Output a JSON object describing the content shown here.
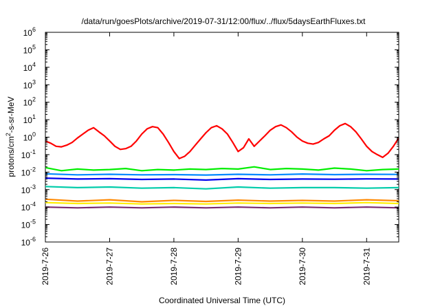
{
  "chart_data": {
    "type": "line",
    "title": "/data/run/goesPlots/archive/2019-07-31/12:00/flux/../flux/5daysEarthFluxes.txt",
    "xlabel": "Coordinated Universal Time (UTC)",
    "ylabel": {
      "base": "protons/cm",
      "exp": "2",
      "rest": "-s-sr-MeV"
    },
    "y_scale": "log",
    "ylim": [
      1e-06,
      1000000.0
    ],
    "y_ticks": [
      {
        "base": "10",
        "exp": "-6",
        "value": 1e-06
      },
      {
        "base": "10",
        "exp": "-5",
        "value": 1e-05
      },
      {
        "base": "10",
        "exp": "-4",
        "value": 0.0001
      },
      {
        "base": "10",
        "exp": "-3",
        "value": 0.001
      },
      {
        "base": "10",
        "exp": "-2",
        "value": 0.01
      },
      {
        "base": "10",
        "exp": "-1",
        "value": 0.1
      },
      {
        "base": "10",
        "exp": "0",
        "value": 1
      },
      {
        "base": "10",
        "exp": "1",
        "value": 10
      },
      {
        "base": "10",
        "exp": "2",
        "value": 100
      },
      {
        "base": "10",
        "exp": "3",
        "value": 1000
      },
      {
        "base": "10",
        "exp": "4",
        "value": 10000
      },
      {
        "base": "10",
        "exp": "5",
        "value": 100000
      },
      {
        "base": "10",
        "exp": "6",
        "value": 1000000
      }
    ],
    "xlim": [
      "2019-07-26 00:00",
      "2019-07-31 12:00"
    ],
    "x_ticks": [
      "2019-7-26",
      "2019-7-27",
      "2019-7-28",
      "2019-7-29",
      "2019-7-30",
      "2019-7-31"
    ],
    "grid": false,
    "series": [
      {
        "color": "#ff0000",
        "x": [
          "2019-07-26 00:00",
          "2019-07-26 02:00",
          "2019-07-26 04:00",
          "2019-07-26 06:00",
          "2019-07-26 08:00",
          "2019-07-26 10:00",
          "2019-07-26 12:00",
          "2019-07-26 14:00",
          "2019-07-26 16:00",
          "2019-07-26 18:00",
          "2019-07-26 20:00",
          "2019-07-26 22:00",
          "2019-07-27 00:00",
          "2019-07-27 02:00",
          "2019-07-27 04:00",
          "2019-07-27 06:00",
          "2019-07-27 08:00",
          "2019-07-27 10:00",
          "2019-07-27 12:00",
          "2019-07-27 14:00",
          "2019-07-27 16:00",
          "2019-07-27 18:00",
          "2019-07-27 20:00",
          "2019-07-27 22:00",
          "2019-07-28 00:00",
          "2019-07-28 02:00",
          "2019-07-28 04:00",
          "2019-07-28 06:00",
          "2019-07-28 08:00",
          "2019-07-28 10:00",
          "2019-07-28 12:00",
          "2019-07-28 14:00",
          "2019-07-28 16:00",
          "2019-07-28 18:00",
          "2019-07-28 20:00",
          "2019-07-28 22:00",
          "2019-07-29 00:00",
          "2019-07-29 02:00",
          "2019-07-29 04:00",
          "2019-07-29 06:00",
          "2019-07-29 08:00",
          "2019-07-29 10:00",
          "2019-07-29 12:00",
          "2019-07-29 14:00",
          "2019-07-29 16:00",
          "2019-07-29 18:00",
          "2019-07-29 20:00",
          "2019-07-29 22:00",
          "2019-07-30 00:00",
          "2019-07-30 02:00",
          "2019-07-30 04:00",
          "2019-07-30 06:00",
          "2019-07-30 08:00",
          "2019-07-30 10:00",
          "2019-07-30 12:00",
          "2019-07-30 14:00",
          "2019-07-30 16:00",
          "2019-07-30 18:00",
          "2019-07-30 20:00",
          "2019-07-30 22:00",
          "2019-07-31 00:00",
          "2019-07-31 02:00",
          "2019-07-31 04:00",
          "2019-07-31 06:00",
          "2019-07-31 08:00",
          "2019-07-31 10:00",
          "2019-07-31 12:00"
        ],
        "values": [
          0.6,
          0.45,
          0.3,
          0.28,
          0.35,
          0.5,
          0.9,
          1.5,
          2.5,
          3.5,
          2.0,
          1.2,
          0.6,
          0.3,
          0.2,
          0.22,
          0.3,
          0.6,
          1.5,
          3.0,
          4.0,
          3.5,
          1.5,
          0.5,
          0.15,
          0.06,
          0.08,
          0.15,
          0.35,
          0.8,
          1.8,
          3.5,
          4.5,
          3.0,
          1.5,
          0.5,
          0.15,
          0.25,
          0.8,
          0.3,
          0.6,
          1.2,
          2.5,
          4.0,
          5.0,
          3.5,
          2.0,
          1.0,
          0.6,
          0.45,
          0.4,
          0.5,
          0.8,
          1.2,
          2.5,
          4.5,
          6.0,
          4.0,
          2.0,
          0.8,
          0.3,
          0.15,
          0.1,
          0.07,
          0.12,
          0.3,
          0.9
        ]
      },
      {
        "color": "#00ee00",
        "x": [
          "2019-07-26 00:00",
          "2019-07-26 06:00",
          "2019-07-26 12:00",
          "2019-07-26 18:00",
          "2019-07-27 00:00",
          "2019-07-27 06:00",
          "2019-07-27 12:00",
          "2019-07-27 18:00",
          "2019-07-28 00:00",
          "2019-07-28 06:00",
          "2019-07-28 12:00",
          "2019-07-28 18:00",
          "2019-07-29 00:00",
          "2019-07-29 06:00",
          "2019-07-29 12:00",
          "2019-07-29 18:00",
          "2019-07-30 00:00",
          "2019-07-30 06:00",
          "2019-07-30 12:00",
          "2019-07-30 18:00",
          "2019-07-31 00:00",
          "2019-07-31 06:00",
          "2019-07-31 12:00"
        ],
        "values": [
          0.018,
          0.012,
          0.015,
          0.013,
          0.014,
          0.016,
          0.012,
          0.014,
          0.013,
          0.015,
          0.014,
          0.016,
          0.015,
          0.02,
          0.014,
          0.016,
          0.015,
          0.013,
          0.017,
          0.015,
          0.012,
          0.014,
          0.015
        ]
      },
      {
        "color": "#0088ff",
        "x": [
          "2019-07-26 00:00",
          "2019-07-26 12:00",
          "2019-07-27 00:00",
          "2019-07-27 12:00",
          "2019-07-28 00:00",
          "2019-07-28 12:00",
          "2019-07-29 00:00",
          "2019-07-29 12:00",
          "2019-07-30 00:00",
          "2019-07-30 12:00",
          "2019-07-31 00:00",
          "2019-07-31 12:00"
        ],
        "values": [
          0.008,
          0.007,
          0.0075,
          0.007,
          0.0072,
          0.0068,
          0.0075,
          0.007,
          0.0078,
          0.0072,
          0.0075,
          0.0074
        ]
      },
      {
        "color": "#0000ee",
        "x": [
          "2019-07-26 00:00",
          "2019-07-26 12:00",
          "2019-07-27 00:00",
          "2019-07-27 12:00",
          "2019-07-28 00:00",
          "2019-07-28 12:00",
          "2019-07-29 00:00",
          "2019-07-29 12:00",
          "2019-07-30 00:00",
          "2019-07-30 12:00",
          "2019-07-31 00:00",
          "2019-07-31 12:00"
        ],
        "values": [
          0.0045,
          0.004,
          0.0042,
          0.0038,
          0.004,
          0.0035,
          0.0042,
          0.0038,
          0.004,
          0.0039,
          0.0041,
          0.004
        ]
      },
      {
        "color": "#00ccaa",
        "x": [
          "2019-07-26 00:00",
          "2019-07-26 12:00",
          "2019-07-27 00:00",
          "2019-07-27 12:00",
          "2019-07-28 00:00",
          "2019-07-28 12:00",
          "2019-07-29 00:00",
          "2019-07-29 12:00",
          "2019-07-30 00:00",
          "2019-07-30 12:00",
          "2019-07-31 00:00",
          "2019-07-31 12:00"
        ],
        "values": [
          0.0015,
          0.0013,
          0.0014,
          0.0012,
          0.0013,
          0.0011,
          0.0014,
          0.0012,
          0.0013,
          0.0013,
          0.0012,
          0.0013
        ]
      },
      {
        "color": "#ff8800",
        "x": [
          "2019-07-26 00:00",
          "2019-07-26 12:00",
          "2019-07-27 00:00",
          "2019-07-27 12:00",
          "2019-07-28 00:00",
          "2019-07-28 12:00",
          "2019-07-29 00:00",
          "2019-07-29 12:00",
          "2019-07-30 00:00",
          "2019-07-30 12:00",
          "2019-07-31 00:00",
          "2019-07-31 12:00"
        ],
        "values": [
          0.00028,
          0.00022,
          0.00026,
          0.0002,
          0.00024,
          0.00021,
          0.00025,
          0.00022,
          0.00024,
          0.00022,
          0.00026,
          0.00023
        ]
      },
      {
        "color": "#ffee00",
        "x": [
          "2019-07-26 00:00",
          "2019-07-26 12:00",
          "2019-07-27 00:00",
          "2019-07-27 12:00",
          "2019-07-28 00:00",
          "2019-07-28 12:00",
          "2019-07-29 00:00",
          "2019-07-29 12:00",
          "2019-07-30 00:00",
          "2019-07-30 12:00",
          "2019-07-31 00:00",
          "2019-07-31 12:00"
        ],
        "values": [
          0.00018,
          0.00016,
          0.00017,
          0.00015,
          0.00016,
          0.00015,
          0.00017,
          0.00016,
          0.00017,
          0.00016,
          0.00018,
          0.00016
        ]
      },
      {
        "color": "#7a2a6e",
        "x": [
          "2019-07-26 00:00",
          "2019-07-26 12:00",
          "2019-07-27 00:00",
          "2019-07-27 12:00",
          "2019-07-28 00:00",
          "2019-07-28 12:00",
          "2019-07-29 00:00",
          "2019-07-29 12:00",
          "2019-07-30 00:00",
          "2019-07-30 12:00",
          "2019-07-31 00:00",
          "2019-07-31 12:00"
        ],
        "values": [
          0.0001,
          9e-05,
          0.0001,
          9e-05,
          0.0001,
          9e-05,
          0.0001,
          9e-05,
          0.0001,
          9e-05,
          0.0001,
          9e-05
        ]
      }
    ]
  }
}
